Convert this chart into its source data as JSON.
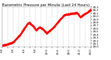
{
  "title": "Barometric Pressure per Minute (Last 24 Hours)",
  "background_color": "#ffffff",
  "plot_color": "#ff0000",
  "grid_color": "#b0b0b0",
  "ylim": [
    29.0,
    30.3
  ],
  "yticks": [
    29.0,
    29.1,
    29.2,
    29.3,
    29.4,
    29.5,
    29.6,
    29.7,
    29.8,
    29.9,
    30.0,
    30.1,
    30.2,
    30.3
  ],
  "num_points": 1440,
  "title_fontsize": 3.8,
  "tick_fontsize": 2.8,
  "xtick_labels": [
    "0:0",
    "",
    "3:0",
    "",
    "6:0",
    "",
    "9:0",
    "",
    "12:0",
    "",
    "15:0",
    "",
    "18:0",
    "",
    "21:0",
    "",
    "24:0"
  ],
  "num_xticks": 17
}
